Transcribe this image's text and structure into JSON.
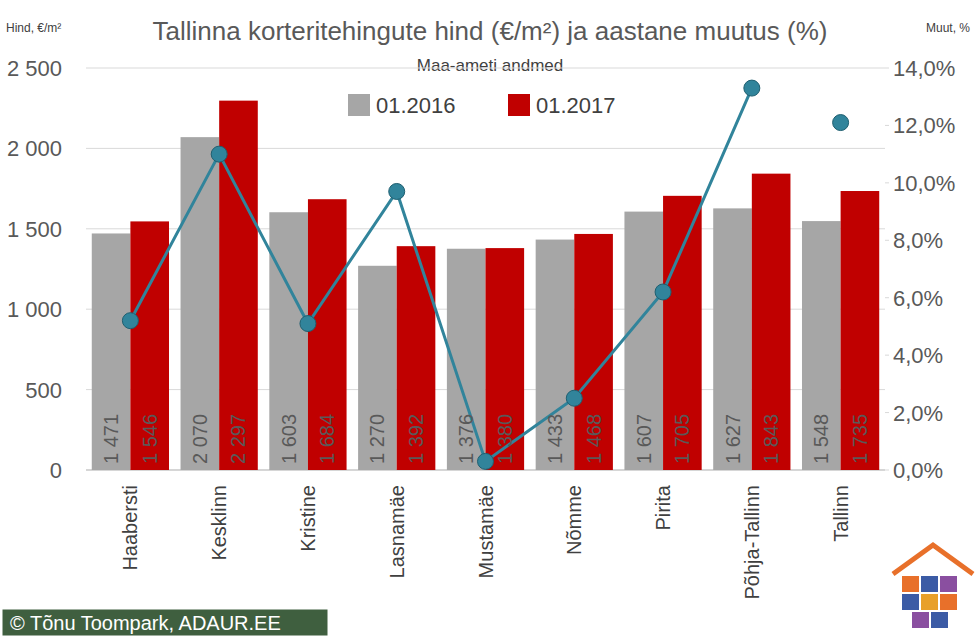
{
  "chart_data": {
    "type": "bar",
    "title": "Tallinna korteritehingute hind (€/m²) ja aastane muutus (%)",
    "subtitle": "Maa-ameti andmed",
    "y_label": "Hind, €/m²",
    "y2_label": "Muut, %",
    "annotation": "© Tõnu Toompark, ADAUR.EE",
    "categories": [
      "Haabersti",
      "Kesklinn",
      "Kristine",
      "Lasnamäe",
      "Mustamäe",
      "Nõmme",
      "Pirita",
      "Põhja-Tallinn",
      "Tallinn"
    ],
    "series": [
      {
        "name": "01.2016",
        "color": "#a6a6a6",
        "values": [
          1471,
          2070,
          1603,
          1270,
          1376,
          1433,
          1607,
          1627,
          1548
        ],
        "value_labels": [
          "1 471",
          "2 070",
          "1 603",
          "1 270",
          "1 376",
          "1 433",
          "1 607",
          "1 627",
          "1 548"
        ]
      },
      {
        "name": "01.2017",
        "color": "#c00000",
        "values": [
          1546,
          2297,
          1684,
          1392,
          1380,
          1468,
          1705,
          1843,
          1735
        ],
        "value_labels": [
          "1 546",
          "2 297",
          "1 684",
          "1 392",
          "1 380",
          "1 468",
          "1 705",
          "1 843",
          "1 735"
        ]
      },
      {
        "type": "line",
        "axis": "y2",
        "color": "#31849b",
        "marker": "circle",
        "line_style": "solid",
        "values": [
          5.2,
          11.0,
          5.1,
          9.7,
          0.3,
          2.5,
          6.2,
          13.3,
          null
        ]
      },
      {
        "type": "line",
        "axis": "y2",
        "color": "#31849b",
        "marker": "circle",
        "line_style": "none",
        "values": [
          null,
          null,
          null,
          null,
          null,
          null,
          null,
          null,
          12.1
        ]
      }
    ],
    "ylim": [
      0,
      2500
    ],
    "yticks": [
      0,
      500,
      {
        "value": 1000,
        "label": "1 000"
      },
      {
        "value": 1500,
        "label": "1 500"
      },
      {
        "value": 2000,
        "label": "2 000"
      },
      {
        "value": 2500,
        "label": "2 500"
      }
    ],
    "y2lim": [
      0,
      14
    ],
    "y2ticks": [
      {
        "value": 0,
        "label": "0,0%"
      },
      {
        "value": 2,
        "label": "2,0%"
      },
      {
        "value": 4,
        "label": "4,0%"
      },
      {
        "value": 6,
        "label": "6,0%"
      },
      {
        "value": 8,
        "label": "8,0%"
      },
      {
        "value": 10,
        "label": "10,0%"
      },
      {
        "value": 12,
        "label": "12,0%"
      },
      {
        "value": 14,
        "label": "14,0%"
      }
    ],
    "grid": true,
    "legend": "top",
    "data_labels": true
  }
}
